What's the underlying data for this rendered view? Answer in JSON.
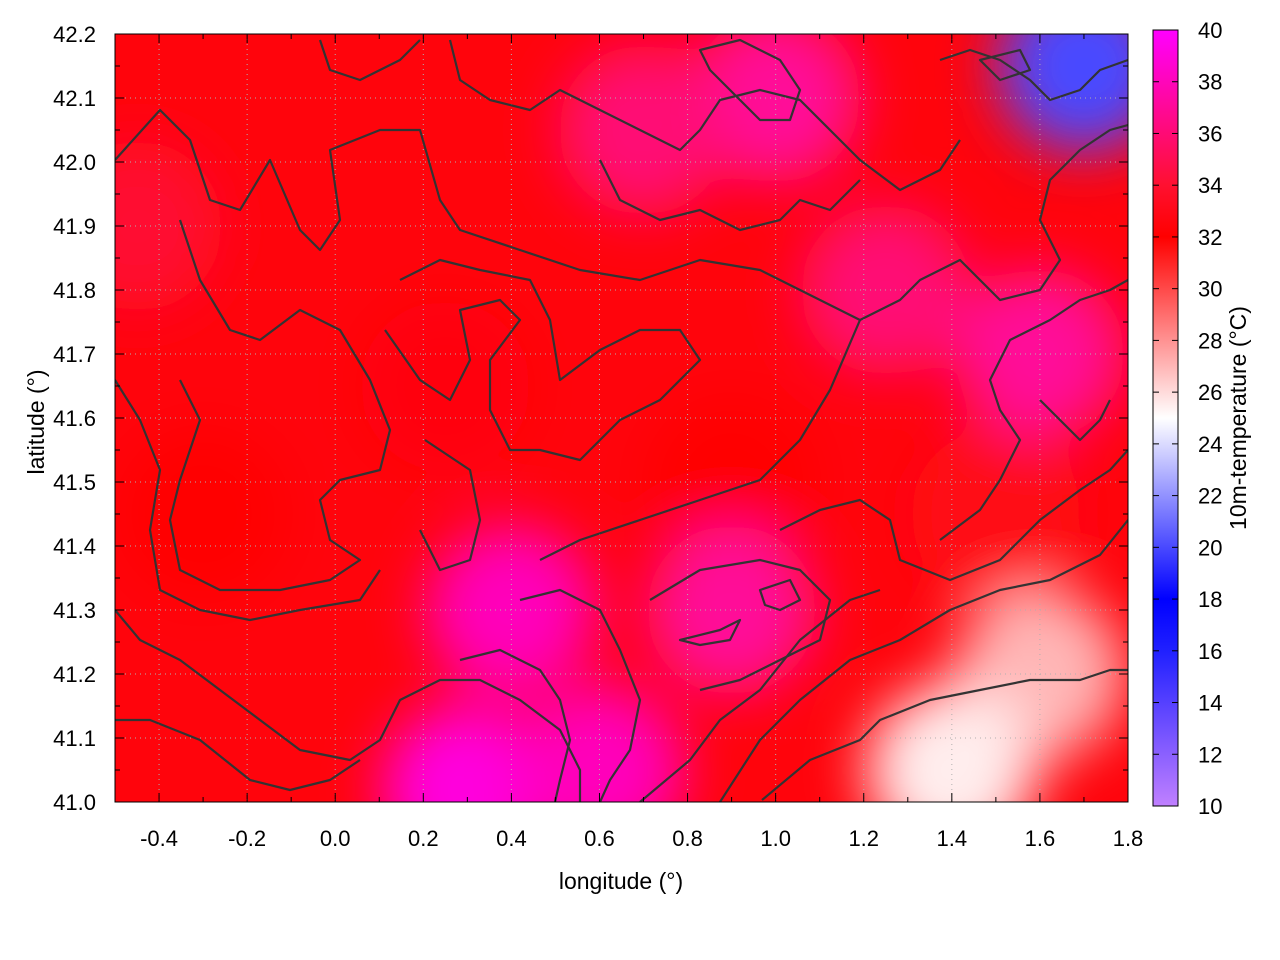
{
  "chart_data": {
    "type": "heatmap",
    "title": "",
    "xlabel": "longitude (°)",
    "ylabel": "latitude (°)",
    "colorbar_label": "10m-temperature (°C)",
    "xlim": [
      -0.5,
      1.8
    ],
    "ylim": [
      41.0,
      42.2
    ],
    "x_ticks": [
      -0.4,
      -0.2,
      0.0,
      0.2,
      0.4,
      0.6,
      0.8,
      1.0,
      1.2,
      1.4,
      1.6,
      1.8
    ],
    "x_tick_labels": [
      "-0.4",
      "-0.2",
      "0.0",
      "0.2",
      "0.4",
      "0.6",
      "0.8",
      "1.0",
      "1.2",
      "1.4",
      "1.6",
      "1.8"
    ],
    "y_ticks": [
      41.0,
      41.1,
      41.2,
      41.3,
      41.4,
      41.5,
      41.6,
      41.7,
      41.8,
      41.9,
      42.0,
      42.1,
      42.2
    ],
    "y_tick_labels": [
      "41.0",
      "41.1",
      "41.2",
      "41.3",
      "41.4",
      "41.5",
      "41.6",
      "41.7",
      "41.8",
      "41.9",
      "42.0",
      "42.1",
      "42.2"
    ],
    "colorbar_range": [
      10,
      40
    ],
    "colorbar_ticks": [
      10,
      12,
      14,
      16,
      18,
      20,
      22,
      24,
      26,
      28,
      30,
      32,
      34,
      36,
      38,
      40
    ],
    "colorbar_tick_labels": [
      "10",
      "12",
      "14",
      "16",
      "18",
      "20",
      "22",
      "24",
      "26",
      "28",
      "30",
      "32",
      "34",
      "36",
      "38",
      "40"
    ],
    "colormap": [
      {
        "value": 10,
        "color": "#c080ff"
      },
      {
        "value": 16,
        "color": "#2020ff"
      },
      {
        "value": 18,
        "color": "#0000ff"
      },
      {
        "value": 25,
        "color": "#ffffff"
      },
      {
        "value": 32,
        "color": "#ff0000"
      },
      {
        "value": 34,
        "color": "#ff1030"
      },
      {
        "value": 40,
        "color": "#ff00ff"
      }
    ],
    "grid": true,
    "contours": true,
    "field_regions": [
      {
        "lon": 0.25,
        "lat": 41.65,
        "value": 32.5
      },
      {
        "lon": -0.3,
        "lat": 41.45,
        "value": 32
      },
      {
        "lon": 0.4,
        "lat": 41.3,
        "value": 38
      },
      {
        "lon": 0.3,
        "lat": 41.02,
        "value": 39
      },
      {
        "lon": 0.6,
        "lat": 41.05,
        "value": 38
      },
      {
        "lon": 0.9,
        "lat": 41.5,
        "value": 32
      },
      {
        "lon": 1.25,
        "lat": 41.8,
        "value": 36
      },
      {
        "lon": 1.6,
        "lat": 41.7,
        "value": 37
      },
      {
        "lon": 1.5,
        "lat": 41.45,
        "value": 33
      },
      {
        "lon": 1.6,
        "lat": 41.2,
        "value": 27
      },
      {
        "lon": 1.4,
        "lat": 41.05,
        "value": 25.5
      },
      {
        "lon": 1.7,
        "lat": 42.15,
        "value": 20
      },
      {
        "lon": 1.0,
        "lat": 42.1,
        "value": 37
      },
      {
        "lon": 0.7,
        "lat": 42.05,
        "value": 36
      },
      {
        "lon": -0.45,
        "lat": 41.9,
        "value": 34
      },
      {
        "lon": 0.9,
        "lat": 41.3,
        "value": 37
      }
    ]
  }
}
